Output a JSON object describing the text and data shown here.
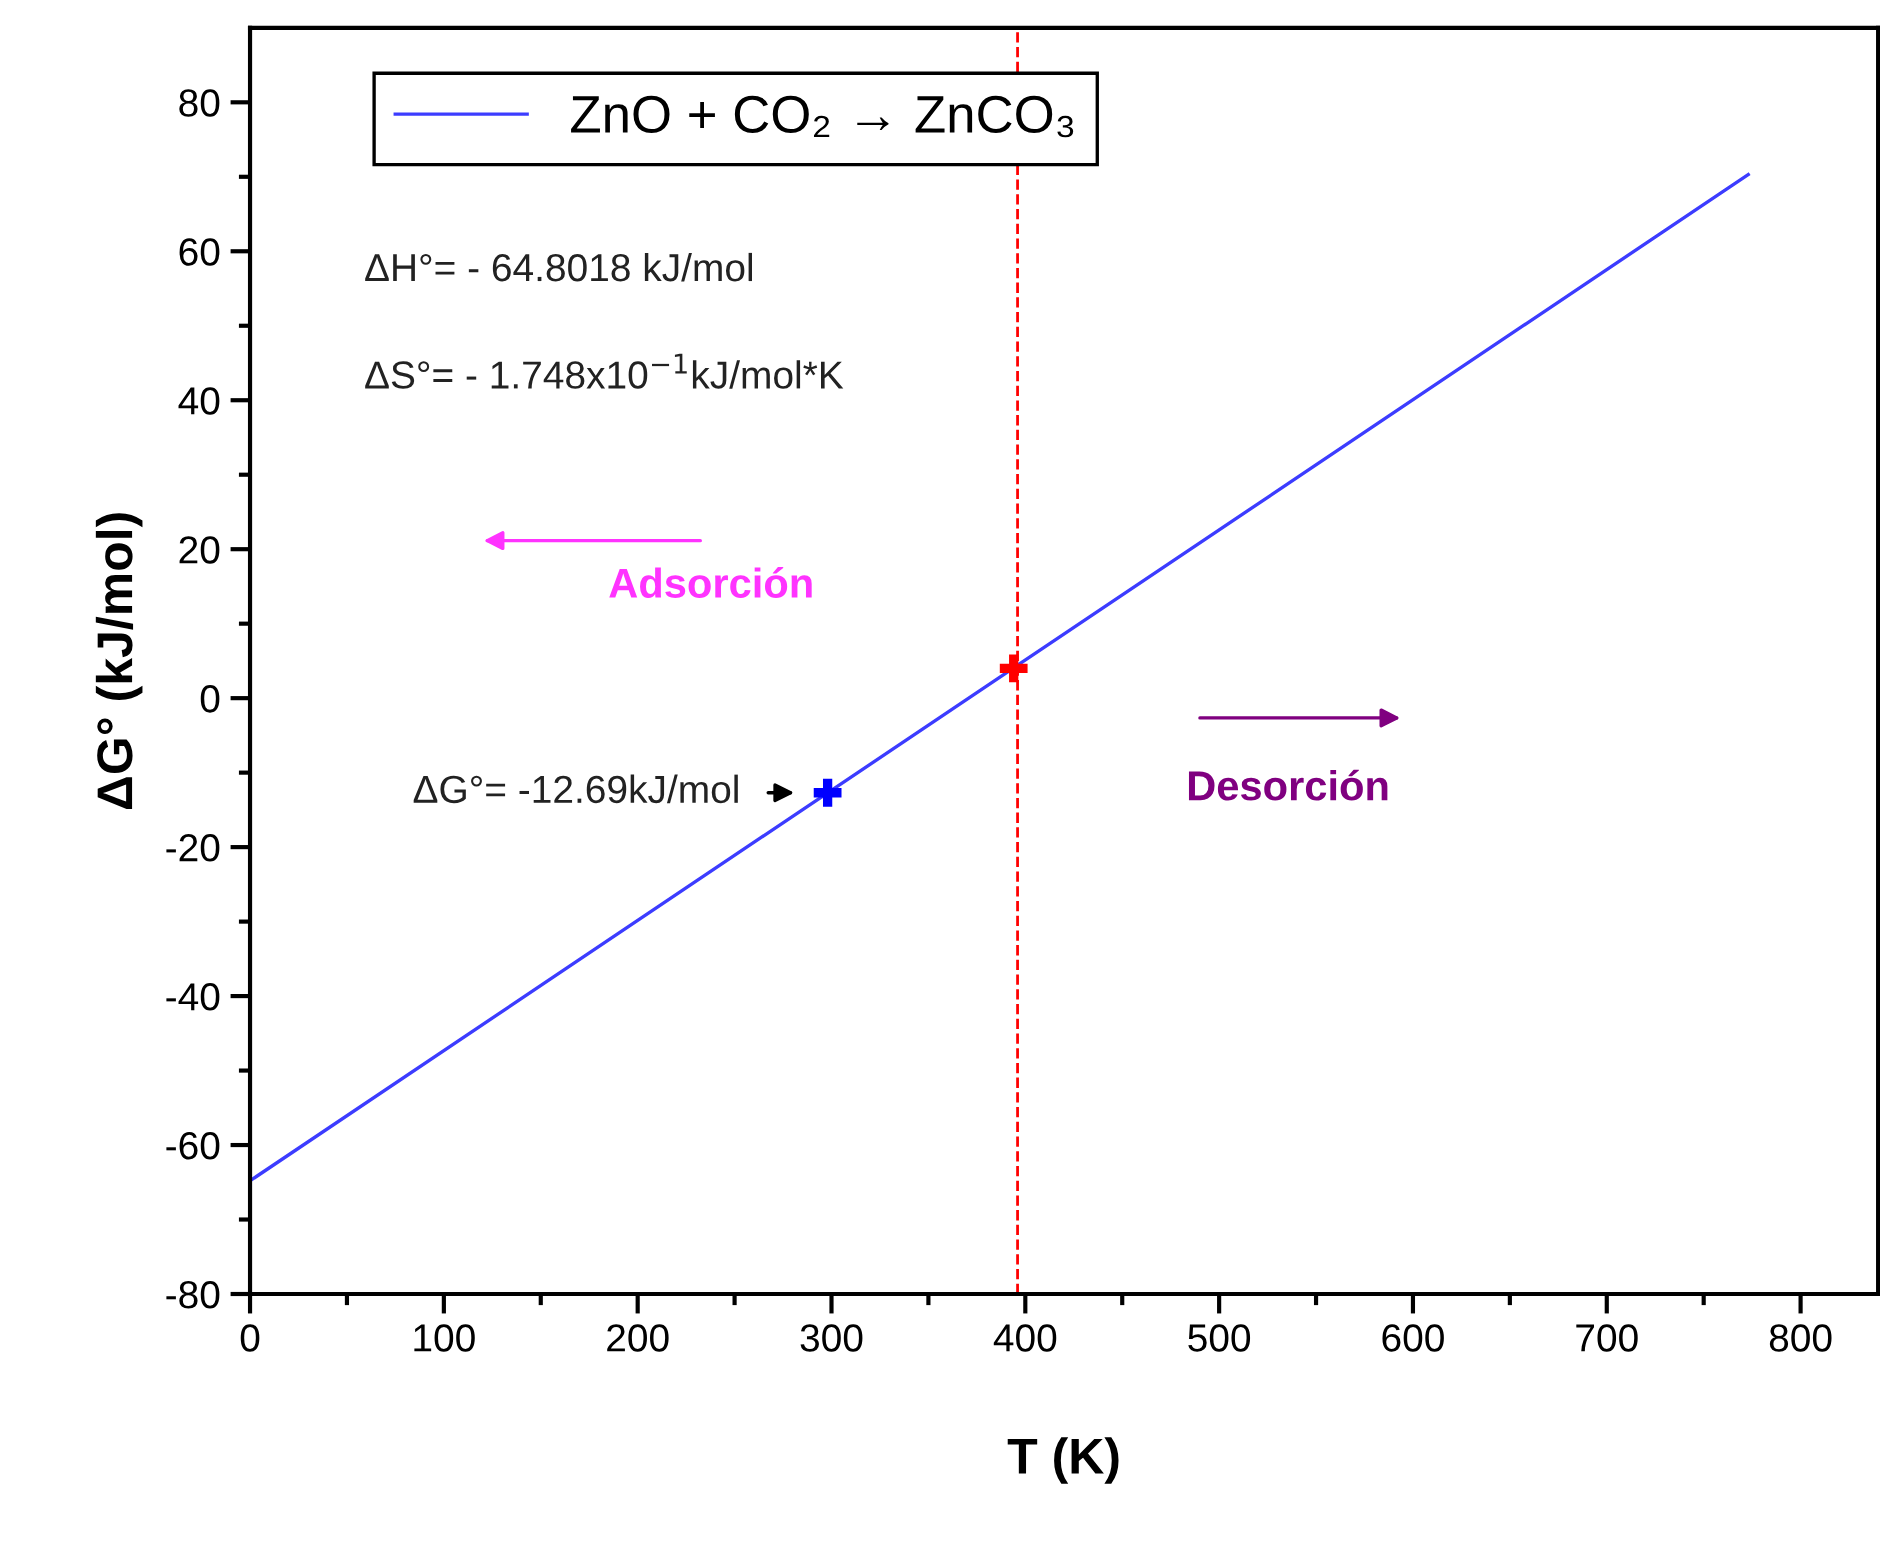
{
  "chart_data": {
    "type": "line",
    "xlabel": "T (K)",
    "ylabel": "ΔG° (kJ/mol)",
    "series": [
      {
        "name": "ZnO + CO₂ → ZnCO₃",
        "color": "#3c3cff",
        "x": [
          0,
          773
        ],
        "values": [
          -64.8,
          70.3
        ],
        "marker": "none"
      },
      {
        "type": "scatter",
        "color": "#0000ff",
        "x": [
          298
        ],
        "values": [
          -12.7
        ],
        "marker": "cross"
      },
      {
        "type": "scatter",
        "color": "#ff0000",
        "x": [
          394
        ],
        "values": [
          4
        ],
        "marker": "cross"
      }
    ],
    "xlim": [
      0,
      840
    ],
    "xticks": [
      0,
      100,
      200,
      300,
      400,
      500,
      600,
      700,
      800
    ],
    "ylim": [
      -80,
      90
    ],
    "yticks": [
      -80,
      -60,
      -40,
      -20,
      0,
      20,
      40,
      60,
      80
    ],
    "ref_lines": [
      {
        "axis": "x",
        "value": 396,
        "color": "#ff0000",
        "line_style": "dashed"
      }
    ],
    "annotations": [
      "ΔH°= - 64.8018 kJ/mol",
      "ΔS°= - 1.748x10$^{−1}$kJ/mol*K",
      "Adsorción",
      "Desorción",
      {
        "text": "ΔG°= -12.69kJ/mol",
        "x": 298,
        "y": -12.7
      }
    ],
    "legend": "top left",
    "grid": false
  }
}
